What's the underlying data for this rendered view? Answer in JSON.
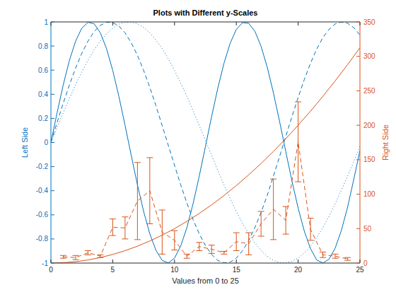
{
  "chart_data": {
    "type": "line",
    "title": "Plots with Different y-Scales",
    "x_label": "Values from 0 to 25",
    "y_label": "Left Side",
    "y2_label": "Right Side",
    "xlim": [
      0,
      25
    ],
    "xticks": [
      0,
      5,
      10,
      15,
      20,
      25
    ],
    "ylim": [
      -1,
      1
    ],
    "yticks": [
      -1,
      -0.8,
      -0.6,
      -0.4,
      -0.2,
      0,
      0.2,
      0.4,
      0.6,
      0.8,
      1
    ],
    "y2lim": [
      0,
      350
    ],
    "y2ticks": [
      0,
      50,
      100,
      150,
      200,
      250,
      300,
      350
    ],
    "grid": false,
    "series": [
      {
        "color": "#0072bd",
        "line_style": "solid",
        "axis": "y",
        "x": [
          0,
          0.5,
          1,
          1.5,
          2,
          2.5,
          3,
          3.5,
          4,
          4.5,
          5,
          5.5,
          6,
          6.5,
          7,
          7.5,
          8,
          8.5,
          9,
          9.5,
          10,
          10.5,
          11,
          11.5,
          12,
          12.5,
          13,
          13.5,
          14,
          14.5,
          15,
          15.5,
          16,
          16.5,
          17,
          17.5,
          18,
          18.5,
          19,
          19.5,
          20,
          20.5,
          21,
          21.5,
          22,
          22.5,
          23,
          23.5,
          24,
          24.5,
          25
        ],
        "values": [
          0,
          0.247,
          0.479,
          0.682,
          0.841,
          0.949,
          0.997,
          0.984,
          0.909,
          0.778,
          0.598,
          0.382,
          0.141,
          -0.108,
          -0.351,
          -0.572,
          -0.757,
          -0.895,
          -0.978,
          -0.999,
          -0.959,
          -0.859,
          -0.706,
          -0.508,
          -0.279,
          -0.033,
          0.215,
          0.45,
          0.657,
          0.823,
          0.938,
          0.994,
          0.989,
          0.923,
          0.798,
          0.625,
          0.412,
          0.174,
          -0.075,
          -0.32,
          -0.544,
          -0.736,
          -0.88,
          -0.974,
          -1,
          -0.968,
          -0.875,
          -0.729,
          -0.537,
          -0.307,
          -0.066
        ]
      },
      {
        "color": "#0072bd",
        "line_style": "dashed",
        "axis": "y",
        "x": [
          0,
          0.5,
          1,
          1.5,
          2,
          2.5,
          3,
          3.5,
          4,
          4.5,
          5,
          5.5,
          6,
          6.5,
          7,
          7.5,
          8,
          8.5,
          9,
          9.5,
          10,
          10.5,
          11,
          11.5,
          12,
          12.5,
          13,
          13.5,
          14,
          14.5,
          15,
          15.5,
          16,
          16.5,
          17,
          17.5,
          18,
          18.5,
          19,
          19.5,
          20,
          20.5,
          21,
          21.5,
          22,
          22.5,
          23,
          23.5,
          24,
          24.5,
          25
        ],
        "values": [
          0,
          0.166,
          0.327,
          0.479,
          0.618,
          0.74,
          0.841,
          0.92,
          0.972,
          0.997,
          0.995,
          0.966,
          0.909,
          0.827,
          0.723,
          0.598,
          0.457,
          0.303,
          0.141,
          -0.025,
          -0.19,
          -0.351,
          -0.502,
          -0.639,
          -0.757,
          -0.855,
          -0.929,
          -0.978,
          -0.999,
          -0.993,
          -0.959,
          -0.898,
          -0.813,
          -0.706,
          -0.58,
          -0.439,
          -0.279,
          -0.116,
          0.05,
          0.215,
          0.373,
          0.522,
          0.657,
          0.774,
          0.87,
          0.938,
          0.983,
          0.999,
          0.989,
          0.953,
          0.891
        ]
      },
      {
        "color": "#0072bd",
        "line_style": "dotted",
        "axis": "y",
        "x": [
          0,
          0.5,
          1,
          1.5,
          2,
          2.5,
          3,
          3.5,
          4,
          4.5,
          5,
          5.5,
          6,
          6.5,
          7,
          7.5,
          8,
          8.5,
          9,
          9.5,
          10,
          10.5,
          11,
          11.5,
          12,
          12.5,
          13,
          13.5,
          14,
          14.5,
          15,
          15.5,
          16,
          16.5,
          17,
          17.5,
          18,
          18.5,
          19,
          19.5,
          20,
          20.5,
          21,
          21.5,
          22,
          22.5,
          23,
          23.5,
          24,
          24.5,
          25
        ],
        "values": [
          0,
          0.125,
          0.247,
          0.366,
          0.479,
          0.585,
          0.682,
          0.768,
          0.841,
          0.902,
          0.949,
          0.981,
          0.997,
          0.999,
          0.984,
          0.954,
          0.909,
          0.85,
          0.778,
          0.694,
          0.598,
          0.493,
          0.382,
          0.264,
          0.141,
          0.017,
          -0.108,
          -0.231,
          -0.351,
          -0.465,
          -0.572,
          -0.67,
          -0.757,
          -0.832,
          -0.895,
          -0.944,
          -0.978,
          -0.996,
          -0.999,
          -0.986,
          -0.959,
          -0.917,
          -0.859,
          -0.789,
          -0.706,
          -0.612,
          -0.508,
          -0.395,
          -0.279,
          -0.158,
          -0.033
        ]
      },
      {
        "color": "#d95319",
        "line_style": "solid",
        "axis": "y2",
        "x": [
          0,
          1,
          2,
          3,
          4,
          5,
          6,
          7,
          8,
          9,
          10,
          11,
          12,
          13,
          14,
          15,
          16,
          17,
          18,
          19,
          20,
          21,
          22,
          23,
          24,
          25
        ],
        "values": [
          0,
          0.5,
          2,
          4.5,
          8,
          12.5,
          18,
          24.5,
          32,
          40.5,
          50,
          60.5,
          72,
          84.5,
          98,
          112.5,
          128,
          144.5,
          162,
          180.5,
          200,
          220.5,
          242,
          264.5,
          288,
          312.5
        ]
      },
      {
        "color": "#d95319",
        "line_style": "dashed",
        "axis": "y2",
        "type": "errorbar",
        "x": [
          1,
          2,
          3,
          4,
          5,
          6,
          7,
          8,
          9,
          10,
          11,
          12,
          13,
          14,
          15,
          16,
          17,
          18,
          19,
          20,
          21,
          22,
          23,
          24
        ],
        "values": [
          9,
          8,
          15,
          10,
          52,
          51,
          90,
          105,
          45,
          33,
          10,
          24,
          20,
          15,
          31,
          28,
          57,
          78,
          62,
          176,
          49,
          12,
          10,
          6
        ],
        "errors": [
          2,
          3,
          3,
          2,
          12,
          16,
          56,
          48,
          32,
          14,
          3,
          6,
          6,
          2,
          13,
          16,
          18,
          44,
          20,
          58,
          16,
          4,
          3,
          2
        ]
      }
    ]
  }
}
